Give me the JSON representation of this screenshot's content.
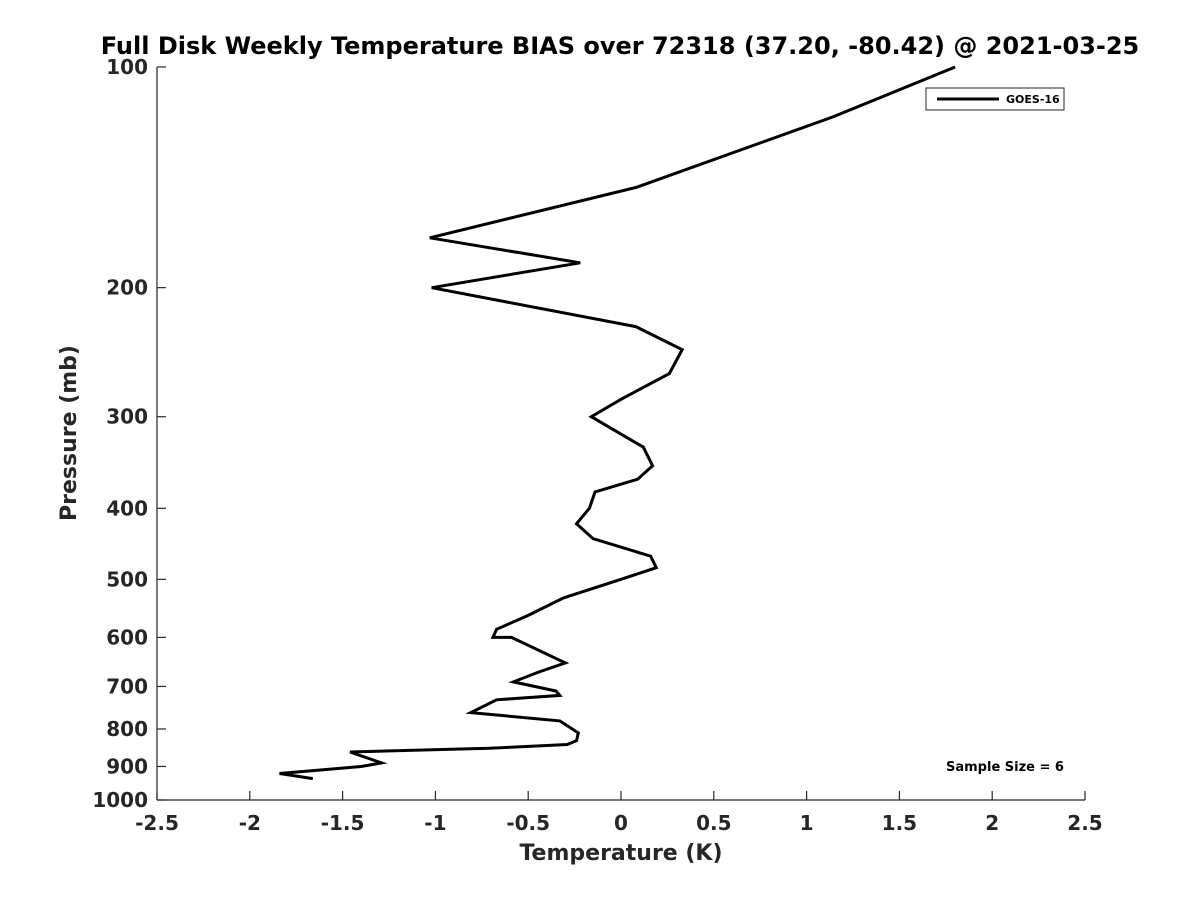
{
  "chart_data": {
    "type": "line",
    "title": "Full Disk Weekly Temperature BIAS over 72318 (37.20, -80.42) @ 2021-03-25",
    "xlabel": "Temperature (K)",
    "ylabel": "Pressure (mb)",
    "xlim": [
      -2.5,
      2.5
    ],
    "ylim": [
      1000,
      100
    ],
    "yscale": "log",
    "y_reversed": true,
    "grid": false,
    "xticks": [
      -2.5,
      -2,
      -1.5,
      -1,
      -0.5,
      0,
      0.5,
      1,
      1.5,
      2,
      2.5
    ],
    "xtick_labels": [
      "-2.5",
      "-2",
      "-1.5",
      "-1",
      "-0.5",
      "0",
      "0.5",
      "1",
      "1.5",
      "2",
      "2.5"
    ],
    "yticks": [
      100,
      200,
      300,
      400,
      500,
      600,
      700,
      800,
      900,
      1000
    ],
    "ytick_labels": [
      "100",
      "200",
      "300",
      "400",
      "500",
      "600",
      "700",
      "800",
      "900",
      "1000"
    ],
    "legend_position": "top-right",
    "series": [
      {
        "name": "GOES-16",
        "color": "#000000",
        "x": [
          1.8,
          1.14,
          0.08,
          -1.03,
          -0.22,
          -1.02,
          0.08,
          0.33,
          0.26,
          0.0,
          -0.16,
          0.12,
          0.17,
          0.09,
          -0.14,
          -0.17,
          -0.24,
          -0.15,
          0.16,
          0.19,
          0.0,
          -0.31,
          -0.5,
          -0.67,
          -0.69,
          -0.59,
          -0.3,
          -0.45,
          -0.58,
          -0.35,
          -0.33,
          -0.67,
          -0.81,
          -0.33,
          -0.23,
          -0.24,
          -0.29,
          -0.71,
          -1.46,
          -1.29,
          -1.4,
          -1.84,
          -1.66
        ],
        "y": [
          100,
          117,
          146,
          171,
          185,
          200,
          226,
          243,
          262,
          284,
          300,
          330,
          350,
          365,
          380,
          400,
          420,
          440,
          465,
          482,
          500,
          530,
          560,
          585,
          600,
          600,
          650,
          670,
          690,
          710,
          720,
          730,
          760,
          780,
          810,
          830,
          840,
          850,
          860,
          890,
          900,
          920,
          935
        ]
      }
    ],
    "annotations": [
      "Sample Size = 6"
    ]
  }
}
